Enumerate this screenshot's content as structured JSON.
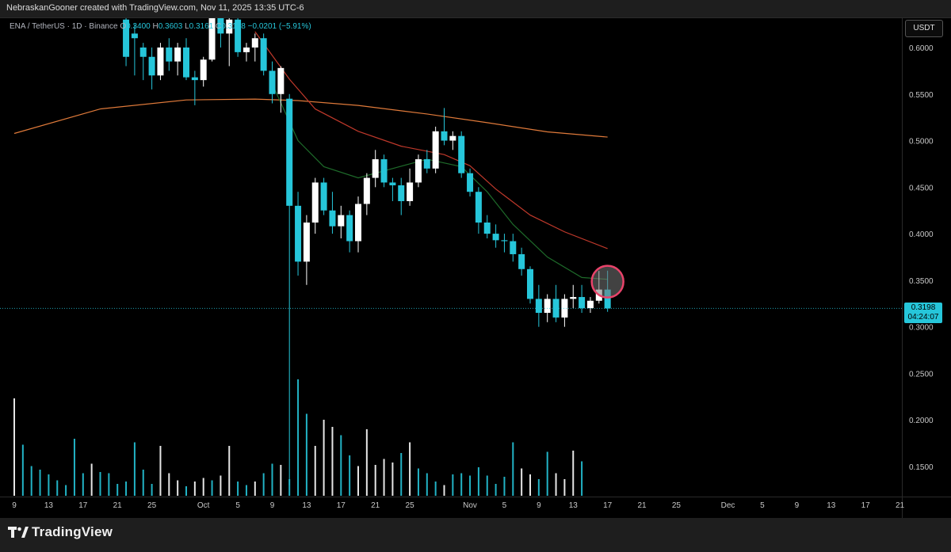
{
  "header": {
    "attribution": "NebraskanGooner created with TradingView.com, Nov 11, 2025 13:35 UTC-6"
  },
  "legend": {
    "symbol": "ENA / TetherUS · 1D · Binance",
    "open_label": "O",
    "open": "0.3400",
    "high_label": "H",
    "high": "0.3603",
    "low_label": "L",
    "low": "0.3161",
    "close_label": "C",
    "close": "0.3198",
    "change": "−0.0201 (−5.91%)"
  },
  "currency_button": "USDT",
  "current_price": {
    "price": "0.3198",
    "countdown": "04:24:07"
  },
  "footer": {
    "brand": "TradingView"
  },
  "colors": {
    "up": "#ffffff",
    "down": "#26c6da",
    "ma_long": "#e07a3a",
    "ma_mid": "#c0392b",
    "ma_short": "#1e6b2a",
    "highlight_circle": "#e8436a",
    "price_line": "#26c6da"
  },
  "chart_data": {
    "type": "candlestick",
    "y_axis": {
      "ticks": [
        "0.6000",
        "0.5500",
        "0.5000",
        "0.4500",
        "0.4000",
        "0.3500",
        "0.3000",
        "0.2500",
        "0.2000",
        "0.1500"
      ],
      "tick_values": [
        0.6,
        0.55,
        0.5,
        0.45,
        0.4,
        0.35,
        0.3,
        0.25,
        0.2,
        0.15
      ],
      "range": [
        0.12,
        0.625
      ]
    },
    "x_axis": {
      "ticks": [
        "9",
        "13",
        "17",
        "21",
        "25",
        "Oct",
        "5",
        "9",
        "13",
        "17",
        "21",
        "25",
        "Nov",
        "5",
        "9",
        "13",
        "17",
        "21",
        "25",
        "Dec",
        "5",
        "9",
        "13",
        "17",
        "21"
      ],
      "tick_days": [
        0,
        4,
        8,
        12,
        16,
        22,
        26,
        30,
        34,
        38,
        42,
        46,
        53,
        57,
        61,
        65,
        69,
        73,
        77,
        83,
        87,
        91,
        95,
        99,
        103
      ],
      "start_date": "2025-09-09",
      "day_range": [
        -1,
        104
      ]
    },
    "candles": [
      {
        "d": 13,
        "o": 0.63,
        "h": 0.64,
        "l": 0.58,
        "c": 0.59
      },
      {
        "d": 14,
        "o": 0.615,
        "h": 0.625,
        "l": 0.57,
        "c": 0.61
      },
      {
        "d": 15,
        "o": 0.6,
        "h": 0.605,
        "l": 0.565,
        "c": 0.59
      },
      {
        "d": 16,
        "o": 0.59,
        "h": 0.6,
        "l": 0.555,
        "c": 0.57
      },
      {
        "d": 17,
        "o": 0.57,
        "h": 0.605,
        "l": 0.565,
        "c": 0.6
      },
      {
        "d": 18,
        "o": 0.6,
        "h": 0.61,
        "l": 0.575,
        "c": 0.585
      },
      {
        "d": 19,
        "o": 0.585,
        "h": 0.605,
        "l": 0.57,
        "c": 0.6
      },
      {
        "d": 20,
        "o": 0.6,
        "h": 0.61,
        "l": 0.565,
        "c": 0.568
      },
      {
        "d": 21,
        "o": 0.568,
        "h": 0.575,
        "l": 0.538,
        "c": 0.565
      },
      {
        "d": 22,
        "o": 0.565,
        "h": 0.59,
        "l": 0.558,
        "c": 0.587
      },
      {
        "d": 23,
        "o": 0.587,
        "h": 0.64,
        "l": 0.585,
        "c": 0.635
      },
      {
        "d": 24,
        "o": 0.635,
        "h": 0.645,
        "l": 0.6,
        "c": 0.615
      },
      {
        "d": 25,
        "o": 0.615,
        "h": 0.64,
        "l": 0.58,
        "c": 0.63
      },
      {
        "d": 26,
        "o": 0.63,
        "h": 0.64,
        "l": 0.59,
        "c": 0.595
      },
      {
        "d": 27,
        "o": 0.595,
        "h": 0.605,
        "l": 0.585,
        "c": 0.6
      },
      {
        "d": 28,
        "o": 0.6,
        "h": 0.615,
        "l": 0.585,
        "c": 0.61
      },
      {
        "d": 29,
        "o": 0.61,
        "h": 0.615,
        "l": 0.57,
        "c": 0.575
      },
      {
        "d": 30,
        "o": 0.575,
        "h": 0.585,
        "l": 0.54,
        "c": 0.55
      },
      {
        "d": 31,
        "o": 0.55,
        "h": 0.58,
        "l": 0.53,
        "c": 0.578
      },
      {
        "d": 32,
        "o": 0.545,
        "h": 0.55,
        "l": 0.13,
        "c": 0.43
      },
      {
        "d": 33,
        "o": 0.43,
        "h": 0.445,
        "l": 0.355,
        "c": 0.37
      },
      {
        "d": 34,
        "o": 0.37,
        "h": 0.42,
        "l": 0.345,
        "c": 0.412
      },
      {
        "d": 35,
        "o": 0.412,
        "h": 0.46,
        "l": 0.4,
        "c": 0.455
      },
      {
        "d": 36,
        "o": 0.455,
        "h": 0.46,
        "l": 0.42,
        "c": 0.425
      },
      {
        "d": 37,
        "o": 0.425,
        "h": 0.445,
        "l": 0.4,
        "c": 0.408
      },
      {
        "d": 38,
        "o": 0.408,
        "h": 0.43,
        "l": 0.395,
        "c": 0.42
      },
      {
        "d": 39,
        "o": 0.42,
        "h": 0.425,
        "l": 0.38,
        "c": 0.392
      },
      {
        "d": 40,
        "o": 0.392,
        "h": 0.44,
        "l": 0.38,
        "c": 0.432
      },
      {
        "d": 41,
        "o": 0.432,
        "h": 0.465,
        "l": 0.42,
        "c": 0.46
      },
      {
        "d": 42,
        "o": 0.46,
        "h": 0.49,
        "l": 0.45,
        "c": 0.48
      },
      {
        "d": 43,
        "o": 0.48,
        "h": 0.485,
        "l": 0.45,
        "c": 0.455
      },
      {
        "d": 44,
        "o": 0.455,
        "h": 0.46,
        "l": 0.435,
        "c": 0.452
      },
      {
        "d": 45,
        "o": 0.452,
        "h": 0.46,
        "l": 0.42,
        "c": 0.435
      },
      {
        "d": 46,
        "o": 0.435,
        "h": 0.47,
        "l": 0.43,
        "c": 0.455
      },
      {
        "d": 47,
        "o": 0.455,
        "h": 0.485,
        "l": 0.45,
        "c": 0.48
      },
      {
        "d": 48,
        "o": 0.48,
        "h": 0.49,
        "l": 0.465,
        "c": 0.47
      },
      {
        "d": 49,
        "o": 0.47,
        "h": 0.515,
        "l": 0.465,
        "c": 0.51
      },
      {
        "d": 50,
        "o": 0.51,
        "h": 0.535,
        "l": 0.495,
        "c": 0.5
      },
      {
        "d": 51,
        "o": 0.5,
        "h": 0.51,
        "l": 0.49,
        "c": 0.505
      },
      {
        "d": 52,
        "o": 0.505,
        "h": 0.51,
        "l": 0.46,
        "c": 0.465
      },
      {
        "d": 53,
        "o": 0.465,
        "h": 0.47,
        "l": 0.44,
        "c": 0.445
      },
      {
        "d": 54,
        "o": 0.445,
        "h": 0.45,
        "l": 0.4,
        "c": 0.412
      },
      {
        "d": 55,
        "o": 0.412,
        "h": 0.42,
        "l": 0.395,
        "c": 0.4
      },
      {
        "d": 56,
        "o": 0.4,
        "h": 0.41,
        "l": 0.385,
        "c": 0.393
      },
      {
        "d": 57,
        "o": 0.393,
        "h": 0.4,
        "l": 0.38,
        "c": 0.392
      },
      {
        "d": 58,
        "o": 0.392,
        "h": 0.4,
        "l": 0.37,
        "c": 0.378
      },
      {
        "d": 59,
        "o": 0.378,
        "h": 0.385,
        "l": 0.355,
        "c": 0.362
      },
      {
        "d": 60,
        "o": 0.362,
        "h": 0.365,
        "l": 0.325,
        "c": 0.33
      },
      {
        "d": 61,
        "o": 0.33,
        "h": 0.345,
        "l": 0.3,
        "c": 0.315
      },
      {
        "d": 62,
        "o": 0.315,
        "h": 0.335,
        "l": 0.305,
        "c": 0.33
      },
      {
        "d": 63,
        "o": 0.33,
        "h": 0.345,
        "l": 0.305,
        "c": 0.31
      },
      {
        "d": 64,
        "o": 0.31,
        "h": 0.335,
        "l": 0.3,
        "c": 0.33
      },
      {
        "d": 65,
        "o": 0.33,
        "h": 0.345,
        "l": 0.32,
        "c": 0.332
      },
      {
        "d": 66,
        "o": 0.332,
        "h": 0.345,
        "l": 0.315,
        "c": 0.32
      },
      {
        "d": 67,
        "o": 0.32,
        "h": 0.332,
        "l": 0.315,
        "c": 0.328
      },
      {
        "d": 68,
        "o": 0.328,
        "h": 0.36,
        "l": 0.325,
        "c": 0.34
      },
      {
        "d": 69,
        "o": 0.34,
        "h": 0.3603,
        "l": 0.3161,
        "c": 0.3198
      }
    ],
    "volume": [
      {
        "d": 0,
        "v": 0.82,
        "up": true
      },
      {
        "d": 1,
        "v": 0.43,
        "up": false
      },
      {
        "d": 2,
        "v": 0.25,
        "up": false
      },
      {
        "d": 3,
        "v": 0.22,
        "up": false
      },
      {
        "d": 4,
        "v": 0.18,
        "up": false
      },
      {
        "d": 5,
        "v": 0.13,
        "up": false
      },
      {
        "d": 6,
        "v": 0.09,
        "up": false
      },
      {
        "d": 7,
        "v": 0.48,
        "up": false
      },
      {
        "d": 8,
        "v": 0.19,
        "up": false
      },
      {
        "d": 9,
        "v": 0.27,
        "up": true
      },
      {
        "d": 10,
        "v": 0.2,
        "up": false
      },
      {
        "d": 11,
        "v": 0.19,
        "up": false
      },
      {
        "d": 12,
        "v": 0.1,
        "up": false
      },
      {
        "d": 13,
        "v": 0.12,
        "up": false
      },
      {
        "d": 14,
        "v": 0.45,
        "up": false
      },
      {
        "d": 15,
        "v": 0.22,
        "up": false
      },
      {
        "d": 16,
        "v": 0.1,
        "up": false
      },
      {
        "d": 17,
        "v": 0.42,
        "up": true
      },
      {
        "d": 18,
        "v": 0.19,
        "up": true
      },
      {
        "d": 19,
        "v": 0.13,
        "up": true
      },
      {
        "d": 20,
        "v": 0.08,
        "up": false
      },
      {
        "d": 21,
        "v": 0.12,
        "up": true
      },
      {
        "d": 22,
        "v": 0.15,
        "up": true
      },
      {
        "d": 23,
        "v": 0.13,
        "up": false
      },
      {
        "d": 24,
        "v": 0.17,
        "up": true
      },
      {
        "d": 25,
        "v": 0.42,
        "up": true
      },
      {
        "d": 26,
        "v": 0.12,
        "up": false
      },
      {
        "d": 27,
        "v": 0.09,
        "up": false
      },
      {
        "d": 28,
        "v": 0.12,
        "up": true
      },
      {
        "d": 29,
        "v": 0.19,
        "up": false
      },
      {
        "d": 30,
        "v": 0.27,
        "up": false
      },
      {
        "d": 31,
        "v": 0.26,
        "up": true
      },
      {
        "d": 32,
        "v": 0.14,
        "up": false
      },
      {
        "d": 33,
        "v": 0.98,
        "up": false
      },
      {
        "d": 34,
        "v": 0.69,
        "up": false
      },
      {
        "d": 35,
        "v": 0.42,
        "up": true
      },
      {
        "d": 36,
        "v": 0.64,
        "up": true
      },
      {
        "d": 37,
        "v": 0.58,
        "up": true
      },
      {
        "d": 38,
        "v": 0.51,
        "up": false
      },
      {
        "d": 39,
        "v": 0.34,
        "up": false
      },
      {
        "d": 40,
        "v": 0.25,
        "up": true
      },
      {
        "d": 41,
        "v": 0.56,
        "up": true
      },
      {
        "d": 42,
        "v": 0.26,
        "up": true
      },
      {
        "d": 43,
        "v": 0.31,
        "up": true
      },
      {
        "d": 44,
        "v": 0.28,
        "up": true
      },
      {
        "d": 45,
        "v": 0.36,
        "up": false
      },
      {
        "d": 46,
        "v": 0.45,
        "up": true
      },
      {
        "d": 47,
        "v": 0.23,
        "up": false
      },
      {
        "d": 48,
        "v": 0.19,
        "up": false
      },
      {
        "d": 49,
        "v": 0.12,
        "up": false
      },
      {
        "d": 50,
        "v": 0.09,
        "up": true
      },
      {
        "d": 51,
        "v": 0.18,
        "up": false
      },
      {
        "d": 52,
        "v": 0.19,
        "up": false
      },
      {
        "d": 53,
        "v": 0.17,
        "up": false
      },
      {
        "d": 54,
        "v": 0.24,
        "up": false
      },
      {
        "d": 55,
        "v": 0.17,
        "up": false
      },
      {
        "d": 56,
        "v": 0.1,
        "up": false
      },
      {
        "d": 57,
        "v": 0.16,
        "up": false
      },
      {
        "d": 58,
        "v": 0.45,
        "up": false
      },
      {
        "d": 59,
        "v": 0.23,
        "up": true
      },
      {
        "d": 60,
        "v": 0.18,
        "up": true
      },
      {
        "d": 61,
        "v": 0.14,
        "up": false
      },
      {
        "d": 62,
        "v": 0.37,
        "up": false
      },
      {
        "d": 63,
        "v": 0.19,
        "up": true
      },
      {
        "d": 64,
        "v": 0.14,
        "up": true
      },
      {
        "d": 65,
        "v": 0.38,
        "up": true
      },
      {
        "d": 66,
        "v": 0.29,
        "up": false
      }
    ],
    "moving_averages": [
      {
        "name": "long",
        "color": "#e07a3a",
        "points": [
          [
            0,
            0.5077
          ],
          [
            10,
            0.534
          ],
          [
            20,
            0.5437
          ],
          [
            28,
            0.5446
          ],
          [
            33,
            0.543
          ],
          [
            40,
            0.5378
          ],
          [
            48,
            0.5286
          ],
          [
            55,
            0.5193
          ],
          [
            62,
            0.5094
          ],
          [
            69,
            0.5038
          ]
        ]
      },
      {
        "name": "mid",
        "color": "#c0392b",
        "points": [
          [
            28,
            0.617
          ],
          [
            32,
            0.566
          ],
          [
            35,
            0.534
          ],
          [
            40,
            0.51
          ],
          [
            45,
            0.494
          ],
          [
            50,
            0.485
          ],
          [
            53,
            0.473
          ],
          [
            56,
            0.448
          ],
          [
            60,
            0.42
          ],
          [
            64,
            0.402
          ],
          [
            69,
            0.384
          ]
        ]
      },
      {
        "name": "short",
        "color": "#1e6b2a",
        "points": [
          [
            30,
            0.561
          ],
          [
            33,
            0.5
          ],
          [
            36,
            0.472
          ],
          [
            40,
            0.46
          ],
          [
            44,
            0.47
          ],
          [
            48,
            0.48
          ],
          [
            52,
            0.472
          ],
          [
            55,
            0.445
          ],
          [
            58,
            0.41
          ],
          [
            62,
            0.375
          ],
          [
            66,
            0.353
          ],
          [
            69,
            0.351
          ]
        ]
      }
    ],
    "current_price": 0.3198,
    "highlight_circle": {
      "d": 69,
      "price": 0.3485
    }
  }
}
